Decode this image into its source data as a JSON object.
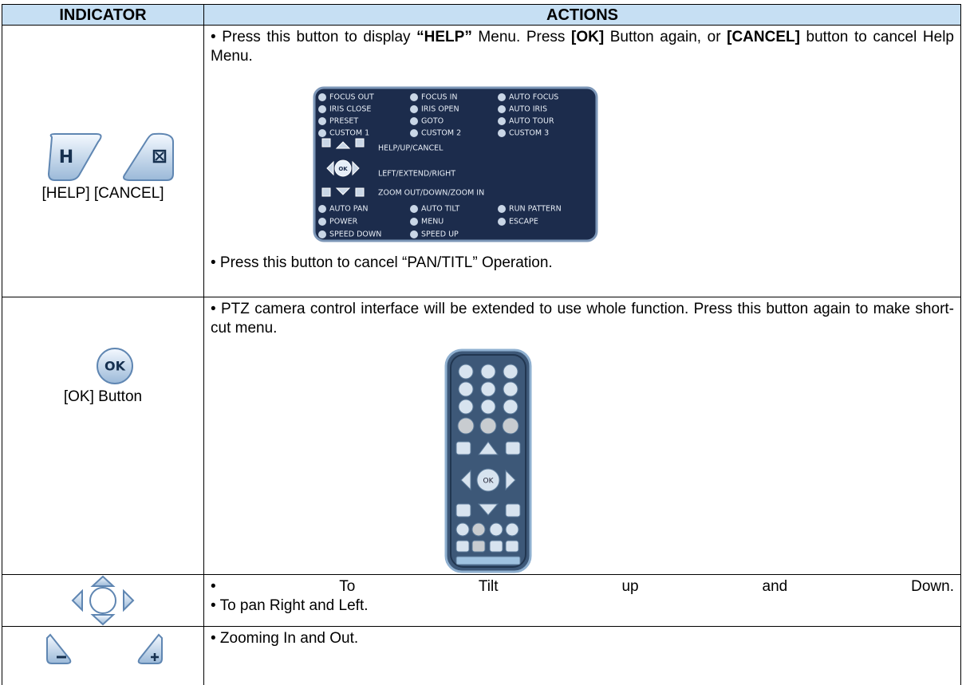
{
  "table": {
    "headers": [
      "INDICATOR",
      "ACTIONS"
    ],
    "rows": [
      {
        "indicator": {
          "icons": [
            "H"
          ],
          "label": "[HELP]  [CANCEL]"
        },
        "actions": [
          [
            "• Press this button to display ",
            "“HELP”",
            " Menu. Press ",
            "[OK]",
            " Button again, or ",
            "[CANCEL]",
            " button to cancel Help Menu."
          ],
          [
            "• Press this button to cancel “PAN/TITL” Operation."
          ]
        ],
        "help_menu": {
          "items": [
            [
              "FOCUS OUT",
              "FOCUS IN",
              "AUTO FOCUS"
            ],
            [
              "IRIS CLOSE",
              "IRIS OPEN",
              "AUTO IRIS"
            ],
            [
              "PRESET",
              "GOTO",
              "AUTO TOUR"
            ],
            [
              "CUSTOM 1",
              "CUSTOM 2",
              "CUSTOM 3"
            ]
          ],
          "pad_ok": "OK",
          "nav": [
            "HELP/UP/CANCEL",
            "LEFT/EXTEND/RIGHT",
            "ZOOM OUT/DOWN/ZOOM IN"
          ],
          "items2": [
            [
              "AUTO PAN",
              "AUTO TILT",
              "RUN PATTERN"
            ],
            [
              "POWER",
              "MENU",
              "ESCAPE"
            ],
            [
              "SPEED DOWN",
              "SPEED UP"
            ]
          ]
        }
      },
      {
        "indicator": {
          "icon": "OK",
          "label": "[OK] Button"
        },
        "actions": [
          [
            "• PTZ camera control interface will be extended to use whole function. Press this button again to make short-cut menu."
          ]
        ],
        "remote": {
          "ok": "OK"
        }
      },
      {
        "actions": [
          [
            "• To Tilt up and Down."
          ],
          [
            "• To pan Right and Left."
          ]
        ]
      },
      {
        "actions": [
          [
            "• Zooming In and Out."
          ]
        ]
      }
    ]
  }
}
